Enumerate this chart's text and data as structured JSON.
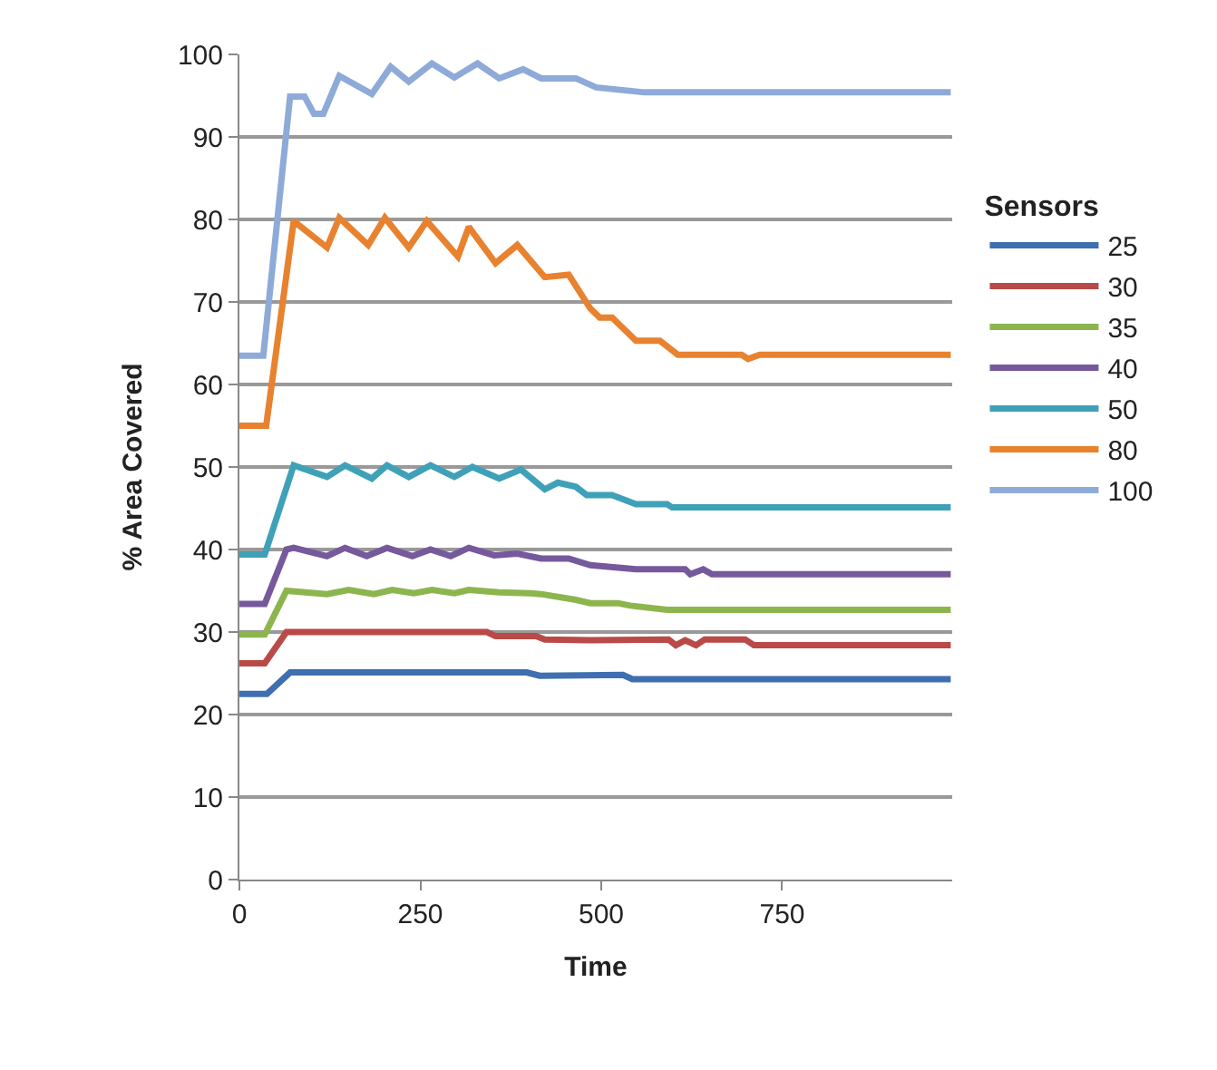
{
  "chart_data": {
    "type": "line",
    "xlabel": "Time",
    "ylabel": "% Area Covered",
    "legend_title": "Sensors",
    "legend": "right",
    "grid": "y",
    "xlim": [
      0,
      985
    ],
    "xticks": [
      0,
      250,
      500,
      750
    ],
    "ylim": [
      0,
      100
    ],
    "yticks": [
      0,
      10,
      20,
      30,
      40,
      50,
      60,
      70,
      80,
      90,
      100
    ],
    "line_style": "solid",
    "marker": "none",
    "series": [
      {
        "name": "25",
        "color": "#3f6fb0",
        "x": [
          0,
          38,
          70,
          397,
          415,
          530,
          543,
          983
        ],
        "values": [
          22.5,
          22.5,
          25.1,
          25.1,
          24.7,
          24.8,
          24.3,
          24.3
        ]
      },
      {
        "name": "30",
        "color": "#b94a48",
        "x": [
          0,
          35,
          65,
          342,
          354,
          410,
          422,
          485,
          593,
          603,
          616,
          631,
          643,
          699,
          711,
          983
        ],
        "values": [
          26.2,
          26.2,
          30.0,
          30.0,
          29.5,
          29.5,
          29.1,
          29.0,
          29.1,
          28.4,
          29.0,
          28.4,
          29.1,
          29.1,
          28.4,
          28.4
        ]
      },
      {
        "name": "35",
        "color": "#8db54e",
        "x": [
          0,
          35,
          65,
          121,
          151,
          186,
          211,
          241,
          266,
          297,
          317,
          359,
          402,
          417,
          465,
          485,
          523,
          540,
          591,
          983
        ],
        "values": [
          29.7,
          29.7,
          35.0,
          34.6,
          35.1,
          34.6,
          35.1,
          34.7,
          35.1,
          34.7,
          35.1,
          34.8,
          34.7,
          34.6,
          33.9,
          33.5,
          33.5,
          33.2,
          32.7,
          32.7
        ]
      },
      {
        "name": "40",
        "color": "#76599c",
        "x": [
          0,
          35,
          65,
          75,
          121,
          146,
          176,
          204,
          239,
          264,
          292,
          317,
          352,
          384,
          417,
          455,
          485,
          548,
          616,
          623,
          641,
          653,
          983
        ],
        "values": [
          33.4,
          33.4,
          40.0,
          40.2,
          39.2,
          40.2,
          39.2,
          40.2,
          39.2,
          40.0,
          39.2,
          40.2,
          39.3,
          39.5,
          38.9,
          38.9,
          38.1,
          37.6,
          37.6,
          37.0,
          37.6,
          37.0,
          37.0
        ]
      },
      {
        "name": "50",
        "color": "#3fa1b7",
        "x": [
          0,
          35,
          75,
          121,
          146,
          183,
          204,
          234,
          264,
          297,
          322,
          359,
          389,
          422,
          440,
          465,
          480,
          515,
          548,
          591,
          598,
          983
        ],
        "values": [
          39.4,
          39.4,
          50.2,
          48.8,
          50.2,
          48.6,
          50.2,
          48.8,
          50.2,
          48.8,
          50.0,
          48.6,
          49.7,
          47.3,
          48.1,
          47.6,
          46.6,
          46.6,
          45.5,
          45.5,
          45.1,
          45.1
        ]
      },
      {
        "name": "80",
        "color": "#e8822f",
        "x": [
          0,
          37,
          75,
          121,
          138,
          178,
          201,
          234,
          259,
          302,
          317,
          354,
          384,
          422,
          455,
          485,
          498,
          515,
          548,
          581,
          606,
          694,
          703,
          719,
          983
        ],
        "values": [
          55.0,
          55.0,
          79.8,
          76.6,
          80.2,
          76.9,
          80.2,
          76.6,
          79.8,
          75.5,
          79.1,
          74.7,
          76.9,
          73.0,
          73.3,
          69.2,
          68.1,
          68.1,
          65.3,
          65.3,
          63.6,
          63.6,
          63.1,
          63.6,
          63.6
        ]
      },
      {
        "name": "100",
        "color": "#8eaad8",
        "x": [
          0,
          33,
          70,
          90,
          103,
          116,
          138,
          183,
          209,
          234,
          266,
          297,
          329,
          359,
          392,
          417,
          465,
          493,
          560,
          983
        ],
        "values": [
          63.5,
          63.5,
          94.9,
          94.9,
          92.8,
          92.8,
          97.4,
          95.2,
          98.5,
          96.7,
          98.9,
          97.2,
          98.9,
          97.1,
          98.2,
          97.1,
          97.1,
          96.0,
          95.4,
          95.4
        ]
      }
    ]
  }
}
